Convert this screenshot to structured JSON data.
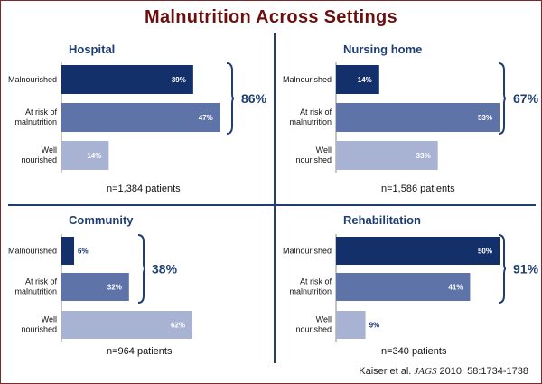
{
  "title": "Malnutrition Across Settings",
  "citation": {
    "author": "Kaiser et al.",
    "journal": "JAGS",
    "rest": "2010; 58:1734-1738"
  },
  "colors": {
    "malnourished": "#14306b",
    "at_risk": "#5e73a8",
    "well": "#a8b2d2",
    "title": "#6b0f0f",
    "panel_title": "#1f3d73"
  },
  "chart_data": [
    {
      "type": "bar",
      "title": "Hospital",
      "categories": [
        "Malnourished",
        "At risk of malnutrition",
        "Well nourished"
      ],
      "values": [
        39,
        47,
        14
      ],
      "value_labels": [
        "39%",
        "47%",
        "14%"
      ],
      "bracket_label": "86%",
      "n_label": "n=1,384 patients",
      "xlim": [
        0,
        50
      ]
    },
    {
      "type": "bar",
      "title": "Nursing home",
      "categories": [
        "Malnourished",
        "At risk of malnutrition",
        "Well nourished"
      ],
      "values": [
        14,
        53,
        33
      ],
      "value_labels": [
        "14%",
        "53%",
        "33%"
      ],
      "bracket_label": "67%",
      "n_label": "n=1,586 patients",
      "xlim": [
        0,
        53
      ]
    },
    {
      "type": "bar",
      "title": "Community",
      "categories": [
        "Malnourished",
        "At risk of malnutrition",
        "Well nourished"
      ],
      "values": [
        6,
        32,
        62
      ],
      "value_labels": [
        "6%",
        "32%",
        "62%"
      ],
      "bracket_label": "38%",
      "n_label": "n=964 patients",
      "xlim": [
        0,
        71
      ]
    },
    {
      "type": "bar",
      "title": "Rehabilitation",
      "categories": [
        "Malnourished",
        "At risk of malnutrition",
        "Well nourished"
      ],
      "values": [
        50,
        41,
        9
      ],
      "value_labels": [
        "50%",
        "41%",
        "9%"
      ],
      "bracket_label": "91%",
      "n_label": "n=340 patients",
      "xlim": [
        0,
        50
      ]
    }
  ]
}
